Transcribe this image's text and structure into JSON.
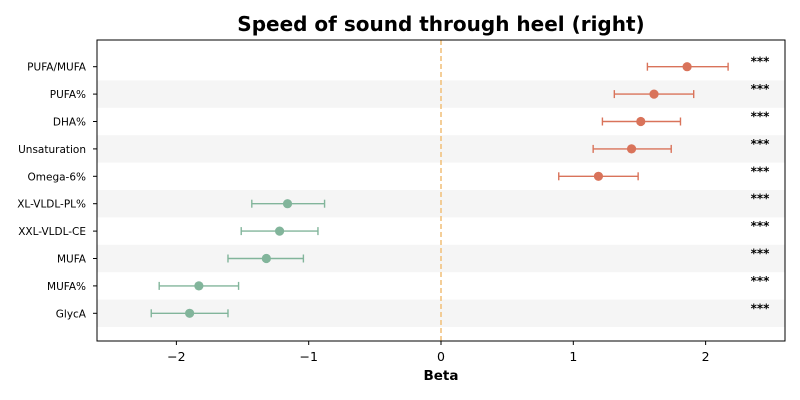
{
  "chart_data": {
    "type": "scatter",
    "subtype": "forest-plot",
    "title": "Speed of sound through heel (right)",
    "xlabel": "Beta",
    "ylabel": "",
    "xlim": [
      -2.6,
      2.6
    ],
    "xticks": [
      -2,
      -1,
      0,
      1,
      2
    ],
    "xtick_labels": [
      "−2",
      "−1",
      "0",
      "1",
      "2"
    ],
    "reference_line": {
      "x": 0,
      "style": "dashed",
      "color": "#f2c27e"
    },
    "grid": false,
    "row_shading": "alternating",
    "colors": {
      "positive": "#d9735a",
      "negative": "#82b59b",
      "band": "#f5f5f5"
    },
    "rows": [
      {
        "label": "PUFA/MUFA",
        "beta": 1.86,
        "ci_low": 1.56,
        "ci_high": 2.17,
        "significance": "***"
      },
      {
        "label": "PUFA%",
        "beta": 1.61,
        "ci_low": 1.31,
        "ci_high": 1.91,
        "significance": "***"
      },
      {
        "label": "DHA%",
        "beta": 1.51,
        "ci_low": 1.22,
        "ci_high": 1.81,
        "significance": "***"
      },
      {
        "label": "Unsaturation",
        "beta": 1.44,
        "ci_low": 1.15,
        "ci_high": 1.74,
        "significance": "***"
      },
      {
        "label": "Omega-6%",
        "beta": 1.19,
        "ci_low": 0.89,
        "ci_high": 1.49,
        "significance": "***"
      },
      {
        "label": "XL-VLDL-PL%",
        "beta": -1.16,
        "ci_low": -1.43,
        "ci_high": -0.88,
        "significance": "***"
      },
      {
        "label": "XXL-VLDL-CE",
        "beta": -1.22,
        "ci_low": -1.51,
        "ci_high": -0.93,
        "significance": "***"
      },
      {
        "label": "MUFA",
        "beta": -1.32,
        "ci_low": -1.61,
        "ci_high": -1.04,
        "significance": "***"
      },
      {
        "label": "MUFA%",
        "beta": -1.83,
        "ci_low": -2.13,
        "ci_high": -1.53,
        "significance": "***"
      },
      {
        "label": "GlycA",
        "beta": -1.9,
        "ci_low": -2.19,
        "ci_high": -1.61,
        "significance": "***"
      }
    ]
  }
}
